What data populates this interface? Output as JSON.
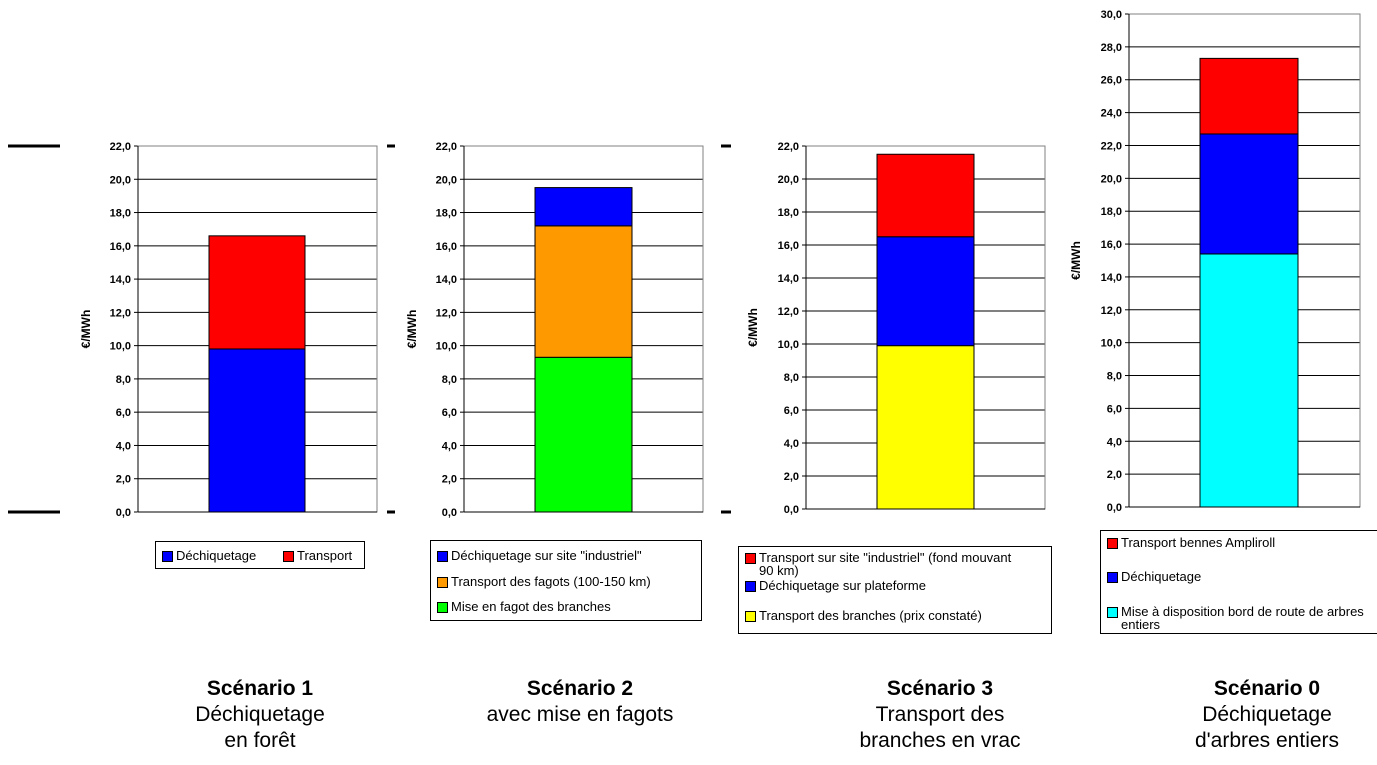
{
  "colors": {
    "blue": "#0000ff",
    "red": "#ff0000",
    "orange": "#ff9900",
    "green": "#00ff00",
    "yellow": "#ffff00",
    "cyan": "#00ffff"
  },
  "chart_data": [
    {
      "type": "bar",
      "stacked": true,
      "ylabel": "€/MWh",
      "ylim": [
        0,
        22
      ],
      "ytick_step": 2,
      "tick_labels": [
        "0,0",
        "2,0",
        "4,0",
        "6,0",
        "8,0",
        "10,0",
        "12,0",
        "14,0",
        "16,0",
        "18,0",
        "20,0",
        "22,0"
      ],
      "grid": true,
      "series": [
        {
          "name": "Déchiquetage",
          "values": [
            9.8
          ],
          "color": "#0000ff"
        },
        {
          "name": "Transport",
          "values": [
            6.8
          ],
          "color": "#ff0000"
        }
      ],
      "legend_placement": "bottom",
      "legend": [
        "Déchiquetage",
        "Transport"
      ],
      "scenario_title": "Scénario 1",
      "scenario_desc": [
        "Déchiquetage",
        "en forêt"
      ]
    },
    {
      "type": "bar",
      "stacked": true,
      "ylabel": "€/MWh",
      "ylim": [
        0,
        22
      ],
      "ytick_step": 2,
      "tick_labels": [
        "0,0",
        "2,0",
        "4,0",
        "6,0",
        "8,0",
        "10,0",
        "12,0",
        "14,0",
        "16,0",
        "18,0",
        "20,0",
        "22,0"
      ],
      "grid": true,
      "series": [
        {
          "name": "Mise en fagot des branches",
          "values": [
            9.3
          ],
          "color": "#00ff00"
        },
        {
          "name": "Transport des fagots (100-150 km)",
          "values": [
            7.9
          ],
          "color": "#ff9900"
        },
        {
          "name": "Déchiquetage sur site \"industriel\"",
          "values": [
            2.3
          ],
          "color": "#0000ff"
        }
      ],
      "legend_placement": "bottom",
      "legend": [
        "Déchiquetage sur site \"industriel\"",
        "Transport des fagots (100-150 km)",
        "Mise en fagot des branches"
      ],
      "scenario_title": "Scénario 2",
      "scenario_desc": [
        "avec mise en fagots"
      ]
    },
    {
      "type": "bar",
      "stacked": true,
      "ylabel": "€/MWh",
      "ylim": [
        0,
        22
      ],
      "ytick_step": 2,
      "tick_labels": [
        "0,0",
        "2,0",
        "4,0",
        "6,0",
        "8,0",
        "10,0",
        "12,0",
        "14,0",
        "16,0",
        "18,0",
        "20,0",
        "22,0"
      ],
      "grid": true,
      "series": [
        {
          "name": "Transport des branches (prix constaté)",
          "values": [
            9.9
          ],
          "color": "#ffff00"
        },
        {
          "name": "Déchiquetage sur plateforme",
          "values": [
            6.6
          ],
          "color": "#0000ff"
        },
        {
          "name": "Transport sur site \"industriel\" (fond mouvant 90 km)",
          "values": [
            5.0
          ],
          "color": "#ff0000"
        }
      ],
      "legend_placement": "bottom",
      "legend": [
        "Transport sur site \"industriel\" (fond mouvant 90 km)",
        "Déchiquetage sur plateforme",
        "Transport des branches (prix constaté)"
      ],
      "scenario_title": "Scénario 3",
      "scenario_desc": [
        "Transport des",
        "branches en vrac"
      ]
    },
    {
      "type": "bar",
      "stacked": true,
      "ylabel": "€/MWh",
      "ylim": [
        0,
        30
      ],
      "ytick_step": 2,
      "tick_labels": [
        "0,0",
        "2,0",
        "4,0",
        "6,0",
        "8,0",
        "10,0",
        "12,0",
        "14,0",
        "16,0",
        "18,0",
        "20,0",
        "22,0",
        "24,0",
        "26,0",
        "28,0",
        "30,0"
      ],
      "grid": true,
      "series": [
        {
          "name": "Mise à disposition bord de route de arbres entiers",
          "values": [
            15.4
          ],
          "color": "#00ffff"
        },
        {
          "name": "Déchiquetage",
          "values": [
            7.3
          ],
          "color": "#0000ff"
        },
        {
          "name": "Transport bennes Ampliroll",
          "values": [
            4.6
          ],
          "color": "#ff0000"
        }
      ],
      "legend_placement": "bottom",
      "legend": [
        "Transport bennes Ampliroll",
        "Déchiquetage",
        "Mise à disposition bord de route de arbres entiers"
      ],
      "scenario_title": "Scénario 0",
      "scenario_desc": [
        "Déchiquetage",
        "d'arbres entiers"
      ]
    }
  ]
}
